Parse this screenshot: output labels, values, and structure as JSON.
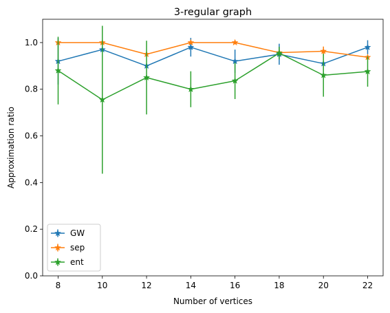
{
  "chart_data": {
    "type": "line",
    "title": "3-regular graph",
    "xlabel": "Number of vertices",
    "ylabel": "Approximation ratio",
    "x": [
      8,
      10,
      12,
      14,
      16,
      18,
      20,
      22
    ],
    "xlim": [
      7.3,
      22.7
    ],
    "ylim": [
      0.0,
      1.1
    ],
    "xticks": [
      8,
      10,
      12,
      14,
      16,
      18,
      20,
      22
    ],
    "yticks": [
      0.0,
      0.2,
      0.4,
      0.6,
      0.8,
      1.0
    ],
    "ytick_labels": [
      "0.0",
      "0.2",
      "0.4",
      "0.6",
      "0.8",
      "1.0"
    ],
    "grid": false,
    "legend_position": "lower-left",
    "marker": "star",
    "error_bars": true,
    "series": [
      {
        "name": "GW",
        "color": "#1f77b4",
        "values": [
          0.92,
          0.97,
          0.9,
          0.98,
          0.92,
          0.95,
          0.91,
          0.98
        ],
        "errors": [
          0.1,
          0.0,
          0.0,
          0.04,
          0.05,
          0.045,
          0.0,
          0.03
        ]
      },
      {
        "name": "sep",
        "color": "#ff7f0e",
        "values": [
          1.0,
          1.0,
          0.95,
          1.0,
          1.0,
          0.957,
          0.963,
          0.937
        ],
        "errors": [
          0.0,
          0.0,
          0.0,
          0.0,
          0.0,
          0.0,
          0.02,
          0.0
        ]
      },
      {
        "name": "ent",
        "color": "#2ca02c",
        "values": [
          0.88,
          0.755,
          0.85,
          0.8,
          0.836,
          0.955,
          0.86,
          0.876
        ],
        "errors": [
          0.145,
          0.317,
          0.158,
          0.077,
          0.078,
          0.027,
          0.092,
          0.065
        ]
      }
    ]
  }
}
